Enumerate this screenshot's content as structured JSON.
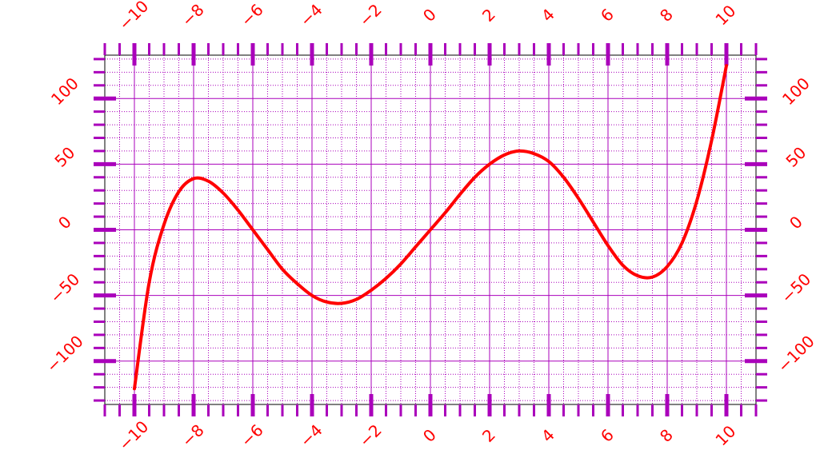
{
  "chart_data": {
    "type": "line",
    "title": "",
    "xlabel": "",
    "ylabel": "",
    "xlim": [
      -11,
      11
    ],
    "ylim": [
      -133,
      133
    ],
    "grid": true,
    "x_major_ticks": [
      -10,
      -8,
      -6,
      -4,
      -2,
      0,
      2,
      4,
      6,
      8,
      10
    ],
    "x_tick_labels": [
      "−10",
      "−8",
      "−6",
      "−4",
      "−2",
      "0",
      "2",
      "4",
      "6",
      "8",
      "10"
    ],
    "y_major_ticks": [
      -100,
      -50,
      0,
      50,
      100
    ],
    "y_tick_labels": [
      "−100",
      "−50",
      "0",
      "50",
      "100"
    ],
    "x_minor_step": 0.5,
    "y_minor_step": 10,
    "colors": {
      "line": "#ff0000",
      "tick_labels": "#ff0000",
      "ticks_and_grid": "#aa00bb",
      "frame": "#000000"
    },
    "series": [
      {
        "x": [
          -10,
          -9.5,
          -9,
          -8.5,
          -8,
          -7.5,
          -7,
          -6.5,
          -6,
          -5.5,
          -5,
          -4.5,
          -4,
          -3.5,
          -3,
          -2.5,
          -2,
          -1.5,
          -1,
          -0.5,
          0,
          0.5,
          1,
          1.5,
          2,
          2.5,
          3,
          3.5,
          4,
          4.5,
          5,
          5.5,
          6,
          6.5,
          7,
          7.5,
          8,
          8.5,
          9,
          9.5,
          10
        ],
        "y": [
          -121,
          -40,
          4,
          29,
          39,
          37,
          28,
          15,
          0,
          -15,
          -30,
          -41,
          -50,
          -55,
          -56,
          -53,
          -46,
          -37,
          -26,
          -13,
          0,
          13,
          27,
          40,
          50,
          57,
          60,
          58,
          52,
          40,
          24,
          6,
          -12,
          -27,
          -35,
          -36,
          -28,
          -10,
          22,
          68,
          125
        ]
      }
    ]
  }
}
